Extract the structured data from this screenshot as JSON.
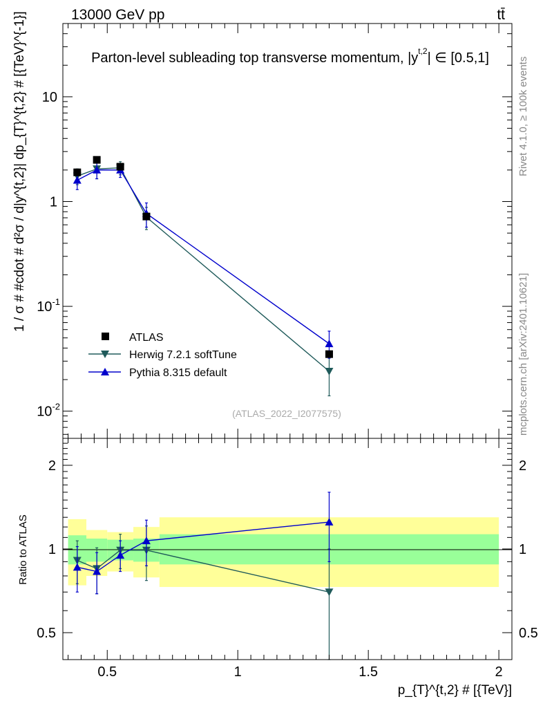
{
  "header": {
    "energy_label": "13000 GeV pp",
    "process_label": "tt̄",
    "title": "Parton-level subleading top transverse momentum, |y",
    "title_sup": "t,2",
    "title_end": "| ∈ [0.5,1]"
  },
  "side_labels": {
    "rivet": "Rivet 4.1.0, ≥ 100k events",
    "mcplots": "mcplots.cern.ch [arXiv:2401.10621]"
  },
  "watermark": "(ATLAS_2022_I2077575)",
  "main_ylabel": "1 / σ # #cdot # d²σ / d|y^{t,2}| dp_{T}^{t,2} # [{TeV}^{-1}]",
  "ratio_ylabel": "Ratio to ATLAS",
  "xlabel": "p_{T}^{t,2} # [{TeV}]",
  "legend": [
    {
      "key": "atlas",
      "label": "ATLAS"
    },
    {
      "key": "herwig",
      "label": "Herwig 7.2.1 softTune"
    },
    {
      "key": "pythia",
      "label": "Pythia 8.315 default"
    }
  ],
  "colors": {
    "atlas": "#000000",
    "herwig": "#1f5a5a",
    "pythia": "#0000cc",
    "band_inner": "#99ff99",
    "band_outer": "#ffff99"
  },
  "chart_data": [
    {
      "type": "line",
      "panel": "main",
      "yscale": "log",
      "xlim": [
        0.33,
        2.05
      ],
      "ylim": [
        0.0055,
        50
      ],
      "y_ticks": [
        {
          "value": 0.01,
          "label": "10^-2"
        },
        {
          "value": 0.1,
          "label": "10^-1"
        },
        {
          "value": 1,
          "label": "1"
        },
        {
          "value": 10,
          "label": "10"
        }
      ],
      "series": [
        {
          "name": "ATLAS",
          "key": "atlas",
          "marker": "square",
          "x": [
            0.385,
            0.46,
            0.55,
            0.65,
            1.35
          ],
          "y": [
            1.9,
            2.5,
            2.15,
            0.72,
            0.035
          ],
          "yerr_lo": [
            0.05,
            0.06,
            0.06,
            0.03,
            0.002
          ],
          "yerr_hi": [
            0.05,
            0.06,
            0.06,
            0.03,
            0.002
          ]
        },
        {
          "name": "Herwig 7.2.1 softTune",
          "key": "herwig",
          "marker": "triangle-down",
          "x": [
            0.385,
            0.46,
            0.55,
            0.65,
            1.35
          ],
          "y": [
            1.75,
            2.05,
            2.1,
            0.71,
            0.024
          ],
          "yerr_lo": [
            0.3,
            0.4,
            0.3,
            0.17,
            0.01
          ],
          "yerr_hi": [
            0.3,
            0.4,
            0.3,
            0.17,
            0.01
          ]
        },
        {
          "name": "Pythia 8.315 default",
          "key": "pythia",
          "marker": "triangle-up",
          "x": [
            0.385,
            0.46,
            0.55,
            0.65,
            1.35
          ],
          "y": [
            1.6,
            2.0,
            2.0,
            0.77,
            0.044
          ],
          "yerr_lo": [
            0.3,
            0.35,
            0.3,
            0.2,
            0.012
          ],
          "yerr_hi": [
            0.3,
            0.35,
            0.3,
            0.2,
            0.014
          ]
        }
      ]
    },
    {
      "type": "line",
      "panel": "ratio",
      "yscale": "log",
      "xlim": [
        0.33,
        2.05
      ],
      "ylim": [
        0.4,
        2.5
      ],
      "x_ticks": [
        {
          "value": 0.5,
          "label": "0.5"
        },
        {
          "value": 1,
          "label": "1"
        },
        {
          "value": 1.5,
          "label": "1.5"
        },
        {
          "value": 2,
          "label": "2"
        }
      ],
      "y_ticks": [
        {
          "value": 0.5,
          "label": "0.5"
        },
        {
          "value": 1,
          "label": "1"
        },
        {
          "value": 2,
          "label": "2"
        }
      ],
      "bands": [
        {
          "xlo": 0.35,
          "xhi": 0.42,
          "inner": [
            0.88,
            1.12
          ],
          "outer": [
            0.74,
            1.28
          ]
        },
        {
          "xlo": 0.42,
          "xhi": 0.5,
          "inner": [
            0.9,
            1.09
          ],
          "outer": [
            0.8,
            1.17
          ]
        },
        {
          "xlo": 0.5,
          "xhi": 0.6,
          "inner": [
            0.91,
            1.08
          ],
          "outer": [
            0.83,
            1.15
          ]
        },
        {
          "xlo": 0.6,
          "xhi": 0.7,
          "inner": [
            0.9,
            1.09
          ],
          "outer": [
            0.79,
            1.2
          ]
        },
        {
          "xlo": 0.7,
          "xhi": 2.0,
          "inner": [
            0.88,
            1.13
          ],
          "outer": [
            0.73,
            1.3
          ]
        }
      ],
      "series": [
        {
          "name": "Herwig 7.2.1 softTune",
          "key": "herwig",
          "marker": "triangle-down",
          "x": [
            0.385,
            0.46,
            0.55,
            0.65,
            1.35
          ],
          "y": [
            0.91,
            0.85,
            0.99,
            0.99,
            0.7
          ],
          "yerr_lo": [
            0.16,
            0.16,
            0.14,
            0.22,
            0.3
          ],
          "yerr_hi": [
            0.16,
            0.16,
            0.14,
            0.22,
            0.3
          ]
        },
        {
          "name": "Pythia 8.315 default",
          "key": "pythia",
          "marker": "triangle-up",
          "x": [
            0.385,
            0.46,
            0.55,
            0.65,
            1.35
          ],
          "y": [
            0.86,
            0.83,
            0.95,
            1.07,
            1.25
          ],
          "yerr_lo": [
            0.16,
            0.14,
            0.12,
            0.2,
            0.35
          ],
          "yerr_hi": [
            0.16,
            0.14,
            0.12,
            0.2,
            0.35
          ]
        }
      ]
    }
  ]
}
